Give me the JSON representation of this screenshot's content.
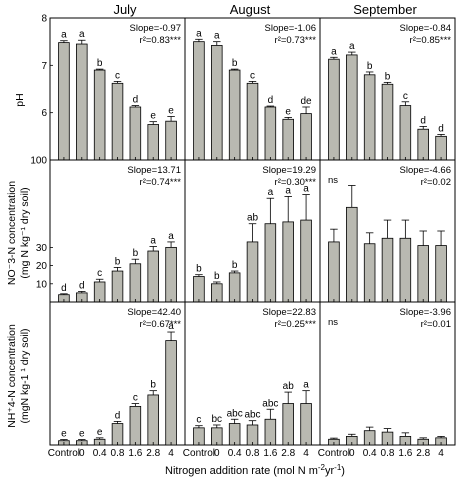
{
  "figure": {
    "columns": [
      "July",
      "August",
      "September"
    ],
    "x_axis_label": "Nitrogen addition rate (mol N m",
    "x_axis_label_sup1": "-2",
    "x_axis_label_mid": "yr",
    "x_axis_label_sup2": "-1",
    "x_axis_label_end": ")",
    "row_labels": {
      "ph": "pH",
      "no3": "NO⁻3-N concentration",
      "no3_line2": "(mg N kg⁻¹ dry soil)",
      "nh4": "NH⁺4-N concentration",
      "nh4_line2": "(mgN kg-1 ¹ dry soil)"
    }
  },
  "chart_data": [
    {
      "type": "bar",
      "row": "ph",
      "column": "July",
      "categories": [
        "Control",
        "0",
        "0.4",
        "0.8",
        "1.6",
        "2.8",
        "4"
      ],
      "values": [
        7.48,
        7.45,
        6.9,
        6.62,
        6.12,
        5.75,
        5.82
      ],
      "errors": [
        0.04,
        0.08,
        0.02,
        0.04,
        0.03,
        0.06,
        0.1
      ],
      "letters": [
        "a",
        "a",
        "b",
        "c",
        "d",
        "e",
        "e"
      ],
      "ylim": [
        5,
        8
      ],
      "yticks": [
        "6",
        "7",
        "8"
      ],
      "slope": "Slope=-0.97",
      "r2": "r²=0.83***"
    },
    {
      "type": "bar",
      "row": "ph",
      "column": "August",
      "categories": [
        "Control",
        "0",
        "0.4",
        "0.8",
        "1.6",
        "2.8",
        "4"
      ],
      "values": [
        7.5,
        7.42,
        6.9,
        6.62,
        6.12,
        5.86,
        5.98
      ],
      "errors": [
        0.05,
        0.08,
        0.02,
        0.04,
        0.02,
        0.04,
        0.14
      ],
      "letters": [
        "a",
        "a",
        "b",
        "c",
        "d",
        "e",
        "de"
      ],
      "ylim": [
        5,
        8
      ],
      "yticks": [],
      "slope": "Slope=-1.06",
      "r2": "r²=0.73***"
    },
    {
      "type": "bar",
      "row": "ph",
      "column": "September",
      "categories": [
        "Control",
        "0",
        "0.4",
        "0.8",
        "1.6",
        "2.8",
        "4"
      ],
      "values": [
        7.13,
        7.22,
        6.8,
        6.6,
        6.15,
        5.65,
        5.5
      ],
      "errors": [
        0.04,
        0.06,
        0.06,
        0.04,
        0.08,
        0.06,
        0.04
      ],
      "letters": [
        "a",
        "a",
        "b",
        "b",
        "c",
        "d",
        "d"
      ],
      "ylim": [
        5,
        8
      ],
      "yticks": [],
      "slope": "Slope=-0.84",
      "r2": "r²=0.85***"
    },
    {
      "type": "bar",
      "row": "no3",
      "column": "July",
      "categories": [
        "Control",
        "0",
        "0.4",
        "0.8",
        "1.6",
        "2.8",
        "4"
      ],
      "values": [
        4,
        5,
        11,
        17,
        21,
        28,
        30
      ],
      "errors": [
        0.5,
        0.8,
        1.5,
        2,
        2.5,
        2.5,
        3
      ],
      "letters": [
        "d",
        "d",
        "c",
        "b",
        "b",
        "a",
        "a"
      ],
      "ylim": [
        0,
        78
      ],
      "yticks": [
        "10",
        "20",
        "30"
      ],
      "slope": "Slope=13.71",
      "r2": "r²=0.74***"
    },
    {
      "type": "bar",
      "row": "no3",
      "column": "August",
      "categories": [
        "Control",
        "0",
        "0.4",
        "0.8",
        "1.6",
        "2.8",
        "4"
      ],
      "values": [
        14,
        10,
        16,
        33,
        43,
        44,
        45
      ],
      "errors": [
        1,
        1,
        1,
        10,
        14,
        14,
        14
      ],
      "letters": [
        "b",
        "b",
        "b",
        "ab",
        "a",
        "a",
        "a"
      ],
      "ylim": [
        0,
        78
      ],
      "yticks": [],
      "slope": "Slope=19.29",
      "r2": "r²=0.30***"
    },
    {
      "type": "bar",
      "row": "no3",
      "column": "September",
      "categories": [
        "Control",
        "0",
        "0.4",
        "0.8",
        "1.6",
        "2.8",
        "4"
      ],
      "values": [
        33,
        52,
        32,
        35,
        35,
        31,
        31
      ],
      "errors": [
        7,
        12,
        6,
        10,
        10,
        8,
        8
      ],
      "letters": [],
      "ylim": [
        0,
        78
      ],
      "yticks": [],
      "slope": "Slope=-4.66",
      "r2": "r²=0.02",
      "ns": "ns"
    },
    {
      "type": "bar",
      "row": "nh4",
      "column": "July",
      "categories": [
        "Control",
        "0",
        "0.4",
        "0.8",
        "1.6",
        "2.8",
        "4"
      ],
      "values": [
        3,
        3,
        4,
        15,
        27,
        35,
        73
      ],
      "errors": [
        0.8,
        0.8,
        1,
        1.5,
        2,
        3,
        6
      ],
      "letters": [
        "e",
        "e",
        "e",
        "d",
        "c",
        "b",
        "a"
      ],
      "ylim": [
        0,
        100
      ],
      "yticks": [],
      "slope": "Slope=42.40",
      "r2": "r²=0.67***"
    },
    {
      "type": "bar",
      "row": "nh4",
      "column": "August",
      "categories": [
        "Control",
        "0",
        "0.4",
        "0.8",
        "1.6",
        "2.8",
        "4"
      ],
      "values": [
        12,
        12,
        15,
        14,
        18,
        29,
        29
      ],
      "errors": [
        1.5,
        2,
        3,
        3,
        7,
        8,
        9
      ],
      "letters": [
        "c",
        "bc",
        "abc",
        "abc",
        "abc",
        "ab",
        "a"
      ],
      "ylim": [
        0,
        100
      ],
      "yticks": [],
      "slope": "Slope=22.83",
      "r2": "r²=0.25***"
    },
    {
      "type": "bar",
      "row": "nh4",
      "column": "September",
      "categories": [
        "Control",
        "0",
        "0.4",
        "0.8",
        "1.6",
        "2.8",
        "4"
      ],
      "values": [
        4,
        6,
        10,
        9,
        6,
        4,
        5
      ],
      "errors": [
        0.8,
        1.5,
        2.5,
        2.5,
        2.5,
        1,
        1
      ],
      "letters": [],
      "ylim": [
        0,
        100
      ],
      "yticks": [],
      "slope": "Slope=-3.96",
      "r2": "r²=0.01",
      "ns": "ns"
    }
  ]
}
